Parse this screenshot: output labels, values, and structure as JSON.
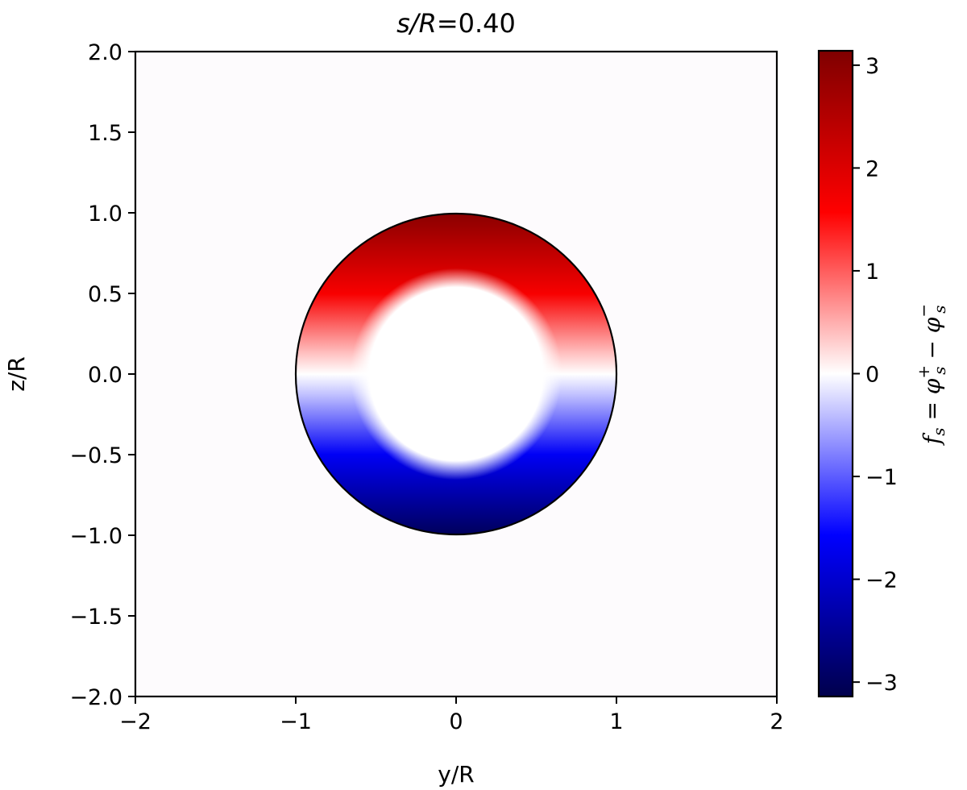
{
  "chart_data": {
    "type": "heatmap",
    "title": {
      "lhs_italic": "s/R",
      "equals": "=",
      "value": "0.40"
    },
    "xlabel": "y/R",
    "ylabel": "z/R",
    "xlim": [
      -2.0,
      2.0
    ],
    "ylim": [
      -2.0,
      2.0
    ],
    "x_ticks": [
      "−2",
      "−1",
      "0",
      "1",
      "2"
    ],
    "x_tick_values": [
      -2,
      -1,
      0,
      1,
      2
    ],
    "y_ticks": [
      "2.0",
      "1.5",
      "1.0",
      "0.5",
      "0.0",
      "−0.5",
      "−1.0",
      "−1.5",
      "−2.0"
    ],
    "y_tick_values": [
      2.0,
      1.5,
      1.0,
      0.5,
      0.0,
      -0.5,
      -1.0,
      -1.5,
      -2.0
    ],
    "field": {
      "description_visible": "annulus",
      "outer_radius": 1.0,
      "inner_radius": 0.6,
      "center": [
        0.0,
        0.0
      ],
      "value_at_top": 3.0,
      "value_at_bottom": -3.0,
      "value_on_horizontal_axis": 0.0,
      "outline_color": "#000000"
    },
    "colorbar": {
      "label": "f_s = φ_s^+ − φ_s^−",
      "label_parts": {
        "f": "f",
        "f_sub": "s",
        "eq": " = ",
        "phi1": "φ",
        "phi1_sub": "s",
        "phi1_sup": "+",
        "minus": " − ",
        "phi2": "φ",
        "phi2_sub": "s",
        "phi2_sup": "−"
      },
      "range": [
        -3.14,
        3.14
      ],
      "ticks": [
        "3",
        "2",
        "1",
        "0",
        "−1",
        "−2",
        "−3"
      ],
      "tick_values": [
        3,
        2,
        1,
        0,
        -1,
        -2,
        -3
      ],
      "colormap": "seismic",
      "colormap_stops": [
        {
          "value": -3.14,
          "color": "#00004c"
        },
        {
          "value": -1.57,
          "color": "#0000ff"
        },
        {
          "value": 0.0,
          "color": "#ffffff"
        },
        {
          "value": 1.57,
          "color": "#ff0000"
        },
        {
          "value": 3.14,
          "color": "#7f0000"
        }
      ]
    },
    "background_value_color": "#fdfbfd",
    "grid": false
  }
}
